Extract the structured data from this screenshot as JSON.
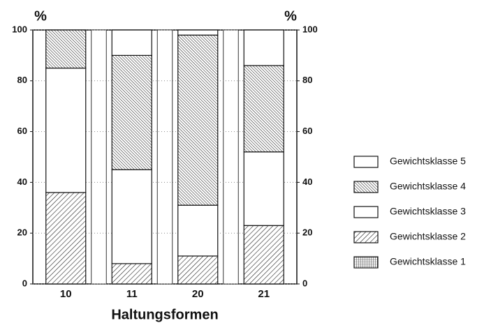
{
  "chart_data": {
    "type": "stacked_bar",
    "x_label": "Haltungsformen",
    "y_label": "%",
    "categories": [
      "10",
      "11",
      "20",
      "21"
    ],
    "series": [
      {
        "name": "Gewichtsklasse 1",
        "color": "#ffffff",
        "pattern": "grid",
        "values": [
          0,
          0,
          0,
          0
        ]
      },
      {
        "name": "Gewichtsklasse 2",
        "color": "#ffffff",
        "pattern": "diag-light",
        "values": [
          36,
          8,
          11,
          23
        ]
      },
      {
        "name": "Gewichtsklasse 3",
        "color": "#ffffff",
        "pattern": "none",
        "values": [
          49,
          37,
          20,
          29
        ]
      },
      {
        "name": "Gewichtsklasse 4",
        "color": "#ffffff",
        "pattern": "diag-dense",
        "values": [
          15,
          45,
          67,
          34
        ]
      },
      {
        "name": "Gewichtsklasse 5",
        "color": "#ffffff",
        "pattern": "none",
        "values": [
          0,
          10,
          2,
          14
        ]
      }
    ],
    "ylim": [
      0,
      100
    ],
    "yticks": [
      0,
      20,
      40,
      60,
      80,
      100
    ],
    "grid": true,
    "legend": "right"
  }
}
